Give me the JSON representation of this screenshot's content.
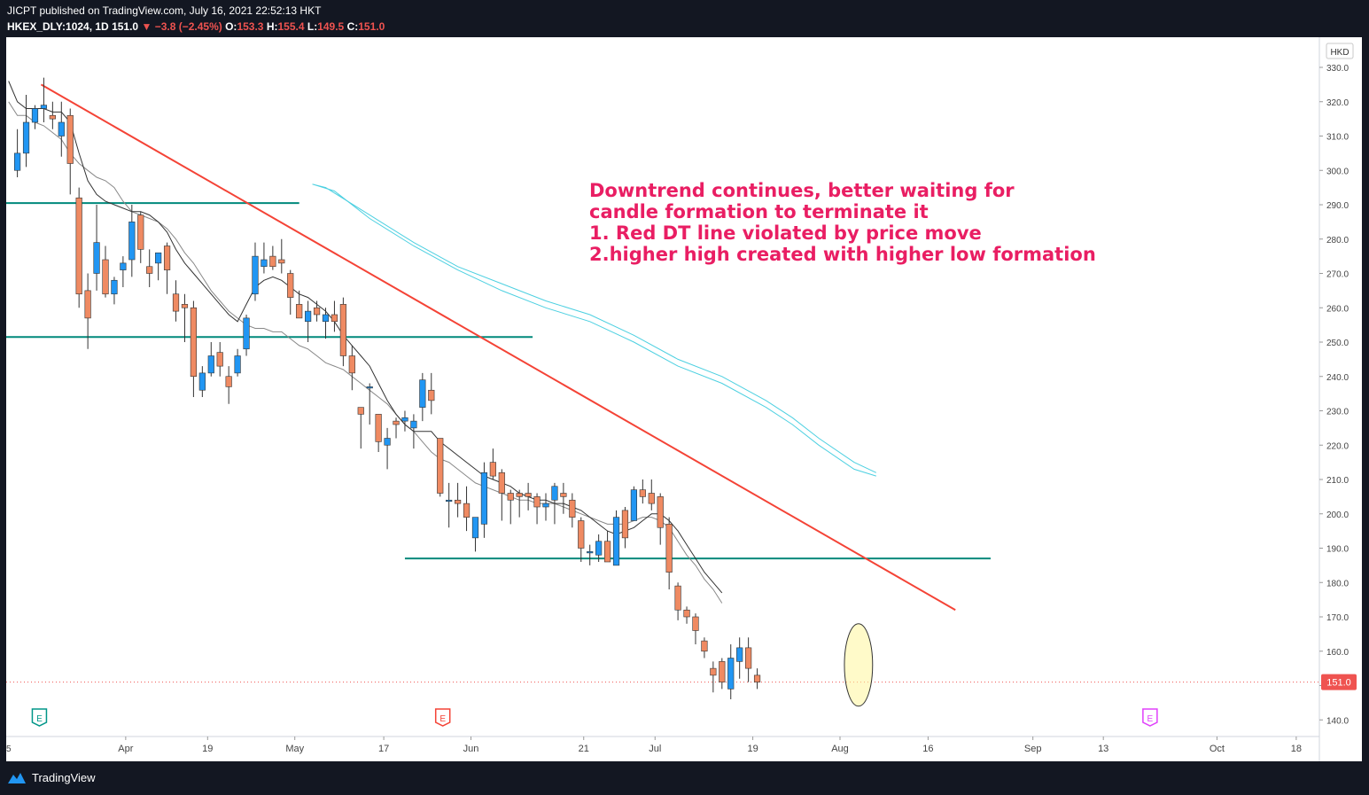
{
  "header": {
    "publish_line": "JICPT published on TradingView.com, July 16, 2021 22:52:13 HKT",
    "symbol": "HKEX_DLY:1024, 1D",
    "last": "151.0",
    "change": "−3.8 (−2.45%)",
    "open_label": "O:",
    "open": "153.3",
    "high_label": "H:",
    "high": "155.4",
    "low_label": "L:",
    "low": "149.5",
    "close_label": "C:",
    "close": "151.0"
  },
  "footer": {
    "brand": "TradingView"
  },
  "colors": {
    "up": "#2196f3",
    "down": "#ef8a62",
    "wick": "#333333",
    "trendline": "#f44336",
    "support": "#00897b",
    "ma_fast": "#333333",
    "ma_slow": "#888888",
    "ma_cyan": "#4dd0e1",
    "annotation": "#e91e63",
    "highlight_fill": "#fff59d"
  },
  "chart_data": {
    "type": "candlestick",
    "currency": "HKD",
    "ylim": [
      136,
      334
    ],
    "y_ticks": [
      "330.0",
      "320.0",
      "310.0",
      "300.0",
      "290.0",
      "280.0",
      "270.0",
      "260.0",
      "250.0",
      "240.0",
      "230.0",
      "220.0",
      "210.0",
      "200.0",
      "190.0",
      "180.0",
      "170.0",
      "160.0",
      "150.0",
      "140.0"
    ],
    "y_tick_values": [
      330,
      320,
      310,
      300,
      290,
      280,
      270,
      260,
      250,
      240,
      230,
      220,
      210,
      200,
      190,
      180,
      170,
      160,
      150,
      140
    ],
    "last_price_label": "151.0",
    "last_price": 151.0,
    "x_ticks": [
      {
        "label": "Apr",
        "bar": 12.3
      },
      {
        "label": "19",
        "bar": 21.6
      },
      {
        "label": "May",
        "bar": 31.5
      },
      {
        "label": "17",
        "bar": 41.6
      },
      {
        "label": "Jun",
        "bar": 51.5
      },
      {
        "label": "21",
        "bar": 64.3
      },
      {
        "label": "Jul",
        "bar": 72.4
      },
      {
        "label": "19",
        "bar": 83.5
      },
      {
        "label": "Aug",
        "bar": 93.4
      },
      {
        "label": "16",
        "bar": 103.4
      },
      {
        "label": "Sep",
        "bar": 115.3
      },
      {
        "label": "13",
        "bar": 123.3
      },
      {
        "label": "Oct",
        "bar": 136.2
      },
      {
        "label": "18",
        "bar": 145.2
      }
    ],
    "candles": [
      [
        300,
        312,
        298,
        305
      ],
      [
        305,
        322,
        301,
        314
      ],
      [
        314,
        319,
        312,
        318
      ],
      [
        318,
        327,
        314,
        319
      ],
      [
        316,
        320,
        312,
        315
      ],
      [
        310,
        320,
        304,
        314
      ],
      [
        316,
        318,
        293,
        302
      ],
      [
        292,
        295,
        260,
        264
      ],
      [
        265,
        270,
        248,
        257
      ],
      [
        270,
        290,
        265,
        279
      ],
      [
        274,
        278,
        263,
        264
      ],
      [
        264,
        269,
        261,
        268
      ],
      [
        271,
        275,
        266,
        273
      ],
      [
        274,
        290,
        269,
        285
      ],
      [
        287,
        288,
        273,
        277
      ],
      [
        272,
        277,
        266,
        270
      ],
      [
        273,
        276,
        268,
        276
      ],
      [
        278,
        279,
        264,
        271
      ],
      [
        264,
        268,
        256,
        259
      ],
      [
        261,
        264,
        250,
        260
      ],
      [
        260,
        262,
        234,
        240
      ],
      [
        236,
        243,
        234,
        241
      ],
      [
        241,
        250,
        240,
        246
      ],
      [
        247,
        250,
        240,
        243
      ],
      [
        240,
        243,
        232,
        237
      ],
      [
        241,
        248,
        240,
        246
      ],
      [
        248,
        258,
        246,
        257
      ],
      [
        264,
        279,
        262,
        275
      ],
      [
        272,
        279,
        270,
        274
      ],
      [
        275,
        278,
        271,
        272
      ],
      [
        274,
        280,
        270,
        273
      ],
      [
        270,
        271,
        258,
        263
      ],
      [
        261,
        265,
        258,
        257
      ],
      [
        256,
        262,
        250,
        259
      ],
      [
        260,
        262,
        256,
        258
      ],
      [
        256,
        260,
        251,
        258
      ],
      [
        258,
        262,
        253,
        256
      ],
      [
        261,
        263,
        243,
        246
      ],
      [
        246,
        249,
        236,
        241
      ],
      [
        231,
        231,
        219,
        229
      ],
      [
        237,
        238,
        226,
        237
      ],
      [
        229,
        229,
        218,
        221
      ],
      [
        220,
        225,
        213,
        222
      ],
      [
        227,
        228,
        222,
        226
      ],
      [
        227,
        230,
        224,
        228
      ],
      [
        225,
        229,
        219,
        227
      ],
      [
        231,
        241,
        227,
        239
      ],
      [
        236,
        241,
        229,
        233
      ],
      [
        222,
        222,
        205,
        206
      ],
      [
        204,
        209,
        196,
        204
      ],
      [
        204,
        209,
        199,
        203
      ],
      [
        203,
        208,
        195,
        199
      ],
      [
        193,
        198,
        189,
        199
      ],
      [
        197,
        215,
        193,
        212
      ],
      [
        215,
        219,
        210,
        211
      ],
      [
        212,
        213,
        198,
        206
      ],
      [
        206,
        207,
        197,
        204
      ],
      [
        206,
        207,
        199,
        205
      ],
      [
        206,
        209,
        201,
        205
      ],
      [
        205,
        206,
        197,
        202
      ],
      [
        202,
        206,
        198,
        203
      ],
      [
        204,
        209,
        197,
        208
      ],
      [
        206,
        209,
        200,
        205
      ],
      [
        204,
        206,
        196,
        199
      ],
      [
        198,
        199,
        186,
        190
      ],
      [
        189,
        191,
        185,
        189
      ],
      [
        188,
        194,
        186,
        192
      ],
      [
        192,
        195,
        186,
        186
      ],
      [
        185,
        201,
        185,
        199
      ],
      [
        201,
        202,
        190,
        193
      ],
      [
        198,
        208,
        198,
        207
      ],
      [
        207,
        210,
        203,
        205
      ],
      [
        206,
        210,
        201,
        203
      ],
      [
        205,
        206,
        191,
        196
      ],
      [
        197,
        199,
        178,
        183
      ],
      [
        179,
        180,
        169,
        172
      ],
      [
        172,
        173,
        168,
        170
      ],
      [
        170,
        171,
        162,
        166
      ],
      [
        163,
        164,
        158,
        160
      ],
      [
        155,
        157,
        148,
        153
      ],
      [
        157,
        158,
        149,
        151
      ],
      [
        149,
        162,
        146,
        158
      ],
      [
        157,
        164,
        152,
        161
      ],
      [
        161,
        164,
        151,
        155
      ],
      [
        153,
        155,
        149,
        151
      ]
    ],
    "ma_fast": [
      [
        -1,
        326
      ],
      [
        0,
        320
      ],
      [
        1,
        318
      ],
      [
        3,
        318
      ],
      [
        4,
        317
      ],
      [
        5,
        317
      ],
      [
        6,
        314
      ],
      [
        7,
        305
      ],
      [
        8,
        297
      ],
      [
        9,
        293
      ],
      [
        10,
        291
      ],
      [
        11,
        290
      ],
      [
        12,
        289
      ],
      [
        13,
        288
      ],
      [
        14,
        288
      ],
      [
        15,
        287
      ],
      [
        16,
        285
      ],
      [
        17,
        282
      ],
      [
        18,
        277
      ],
      [
        19,
        273
      ],
      [
        20,
        270
      ],
      [
        21,
        267
      ],
      [
        22,
        264
      ],
      [
        23,
        261
      ],
      [
        24,
        258
      ],
      [
        25,
        256
      ],
      [
        26,
        261
      ],
      [
        27,
        266
      ],
      [
        28,
        268
      ],
      [
        29,
        269
      ],
      [
        30,
        268
      ],
      [
        31,
        266
      ],
      [
        32,
        264
      ],
      [
        33,
        263
      ],
      [
        34,
        261
      ],
      [
        35,
        259
      ],
      [
        36,
        256
      ],
      [
        37,
        252
      ],
      [
        38,
        249
      ],
      [
        39,
        246
      ],
      [
        40,
        243
      ],
      [
        41,
        238
      ],
      [
        42,
        233
      ],
      [
        43,
        229
      ],
      [
        44,
        226
      ],
      [
        45,
        224
      ],
      [
        46,
        224
      ],
      [
        47,
        224
      ],
      [
        48,
        221
      ],
      [
        49,
        219
      ],
      [
        50,
        217
      ],
      [
        51,
        215
      ],
      [
        52,
        213
      ],
      [
        53,
        211
      ],
      [
        54,
        210
      ],
      [
        55,
        209
      ],
      [
        56,
        208
      ],
      [
        57,
        206
      ],
      [
        58,
        205
      ],
      [
        59,
        204
      ],
      [
        60,
        204
      ],
      [
        61,
        203
      ],
      [
        62,
        203
      ],
      [
        63,
        202
      ],
      [
        64,
        201
      ],
      [
        65,
        199
      ],
      [
        66,
        197
      ],
      [
        67,
        195
      ],
      [
        68,
        194
      ],
      [
        69,
        195
      ],
      [
        70,
        196
      ],
      [
        71,
        198
      ],
      [
        72,
        200
      ],
      [
        73,
        200
      ],
      [
        74,
        198
      ],
      [
        75,
        195
      ],
      [
        76,
        191
      ],
      [
        77,
        187
      ],
      [
        78,
        183
      ],
      [
        79,
        180
      ],
      [
        80,
        177
      ]
    ],
    "ma_slow": [
      [
        -1,
        320
      ],
      [
        0,
        316
      ],
      [
        1,
        316
      ],
      [
        2,
        314
      ],
      [
        3,
        313
      ],
      [
        4,
        311
      ],
      [
        5,
        309
      ],
      [
        6,
        305
      ],
      [
        7,
        302
      ],
      [
        8,
        300
      ],
      [
        9,
        298
      ],
      [
        10,
        297
      ],
      [
        11,
        295
      ],
      [
        12,
        291
      ],
      [
        13,
        288
      ],
      [
        14,
        287
      ],
      [
        15,
        286
      ],
      [
        16,
        285
      ],
      [
        17,
        283
      ],
      [
        18,
        280
      ],
      [
        19,
        276
      ],
      [
        20,
        273
      ],
      [
        21,
        269
      ],
      [
        22,
        265
      ],
      [
        23,
        262
      ],
      [
        24,
        259
      ],
      [
        25,
        257
      ],
      [
        26,
        255
      ],
      [
        27,
        254
      ],
      [
        28,
        254
      ],
      [
        29,
        253
      ],
      [
        30,
        253
      ],
      [
        31,
        251
      ],
      [
        32,
        249
      ],
      [
        33,
        248
      ],
      [
        34,
        246
      ],
      [
        35,
        244
      ],
      [
        36,
        243
      ],
      [
        37,
        242
      ],
      [
        38,
        240
      ],
      [
        39,
        238
      ],
      [
        40,
        236
      ],
      [
        41,
        234
      ],
      [
        42,
        232
      ],
      [
        43,
        229
      ],
      [
        44,
        226
      ],
      [
        45,
        224
      ],
      [
        46,
        221
      ],
      [
        47,
        218
      ],
      [
        48,
        216
      ],
      [
        49,
        215
      ],
      [
        50,
        213
      ],
      [
        51,
        211
      ],
      [
        52,
        209
      ],
      [
        53,
        208
      ],
      [
        54,
        207
      ],
      [
        55,
        206
      ],
      [
        56,
        205
      ],
      [
        57,
        204
      ],
      [
        58,
        204
      ],
      [
        59,
        203
      ],
      [
        60,
        203
      ],
      [
        61,
        203
      ],
      [
        62,
        202
      ],
      [
        63,
        201
      ],
      [
        64,
        200
      ],
      [
        65,
        199
      ],
      [
        66,
        198
      ],
      [
        67,
        197
      ],
      [
        68,
        197
      ],
      [
        69,
        197
      ],
      [
        70,
        198
      ],
      [
        71,
        199
      ],
      [
        72,
        199
      ],
      [
        73,
        198
      ],
      [
        74,
        196
      ],
      [
        75,
        192
      ],
      [
        76,
        188
      ],
      [
        77,
        185
      ],
      [
        78,
        181
      ],
      [
        79,
        178
      ],
      [
        80,
        174
      ]
    ],
    "ma_cyan_1": [
      [
        33.5,
        296
      ],
      [
        36,
        294
      ],
      [
        40,
        286
      ],
      [
        45,
        278
      ],
      [
        50,
        271
      ],
      [
        55,
        265
      ],
      [
        60,
        260
      ],
      [
        65,
        256
      ],
      [
        70,
        250
      ],
      [
        75,
        243
      ],
      [
        80,
        238
      ],
      [
        85,
        231
      ],
      [
        88,
        226
      ],
      [
        91,
        220
      ],
      [
        95,
        213
      ],
      [
        97.5,
        211
      ]
    ],
    "ma_cyan_2": [
      [
        33.5,
        296
      ],
      [
        35,
        295
      ],
      [
        40,
        287
      ],
      [
        45,
        279
      ],
      [
        50,
        272
      ],
      [
        55,
        267
      ],
      [
        60,
        262
      ],
      [
        65,
        258
      ],
      [
        70,
        252
      ],
      [
        75,
        245
      ],
      [
        80,
        240
      ],
      [
        85,
        233
      ],
      [
        88,
        228
      ],
      [
        91,
        222
      ],
      [
        95,
        215
      ],
      [
        97.5,
        212
      ]
    ],
    "trendline": {
      "from": [
        2.7,
        325
      ],
      "to": [
        106.5,
        172
      ]
    },
    "support_lines": [
      {
        "y": 290.5,
        "from": -1.5,
        "to": 32
      },
      {
        "y": 251.5,
        "from": -1.5,
        "to": 58.5
      },
      {
        "y": 187,
        "from": 44,
        "to": 110.5
      }
    ],
    "highlight": {
      "cx": 95.5,
      "cy": 156,
      "rx": 1.6,
      "ry": 12
    },
    "annotation_lines": [
      "Downtrend continues, better waiting for",
      "candle formation to terminate it",
      "1. Red DT line violated by price move",
      "2.higher high created with higher low formation"
    ],
    "event_markers": [
      {
        "label": "E",
        "bar": 2.5,
        "color": "#009688"
      },
      {
        "label": "E",
        "bar": 48.3,
        "color": "#f44336"
      },
      {
        "label": "E",
        "bar": 128.6,
        "color": "#e040fb"
      }
    ],
    "x_edge_label": "5"
  }
}
